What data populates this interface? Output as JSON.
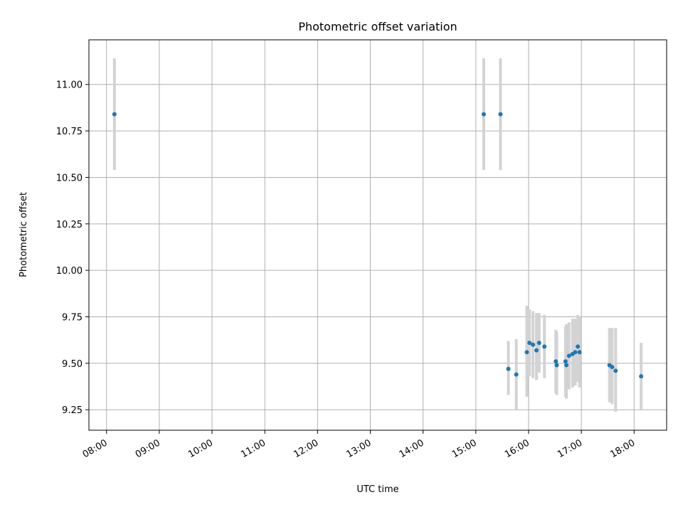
{
  "chart_data": {
    "type": "scatter",
    "title": "Photometric offset variation",
    "xlabel": "UTC time",
    "ylabel": "Photometric offset",
    "x_unit": "UTC time (HH:MM)",
    "xlim": [
      "07:40",
      "18:37"
    ],
    "ylim": [
      9.14,
      11.24
    ],
    "x_ticks": [
      "08:00",
      "09:00",
      "10:00",
      "11:00",
      "12:00",
      "13:00",
      "14:00",
      "15:00",
      "16:00",
      "17:00",
      "18:00"
    ],
    "y_ticks": [
      9.25,
      9.5,
      9.75,
      10.0,
      10.25,
      10.5,
      10.75,
      11.0
    ],
    "grid": true,
    "legend": "none",
    "colors": {
      "points": "#1f77b4",
      "errorbars": "#d3d3d3",
      "grid": "#b0b0b0"
    },
    "points": [
      {
        "x": "08:09",
        "y": 10.84,
        "yerr_low": 10.54,
        "yerr_high": 11.14
      },
      {
        "x": "15:09",
        "y": 10.84,
        "yerr_low": 10.54,
        "yerr_high": 11.14
      },
      {
        "x": "15:28",
        "y": 10.84,
        "yerr_low": 10.54,
        "yerr_high": 11.14
      },
      {
        "x": "15:37",
        "y": 9.47,
        "yerr_low": 9.33,
        "yerr_high": 9.62
      },
      {
        "x": "15:46",
        "y": 9.44,
        "yerr_low": 9.25,
        "yerr_high": 9.63
      },
      {
        "x": "15:58",
        "y": 9.56,
        "yerr_low": 9.32,
        "yerr_high": 9.81
      },
      {
        "x": "16:01",
        "y": 9.61,
        "yerr_low": 9.43,
        "yerr_high": 9.79
      },
      {
        "x": "16:05",
        "y": 9.6,
        "yerr_low": 9.42,
        "yerr_high": 9.78
      },
      {
        "x": "16:09",
        "y": 9.57,
        "yerr_low": 9.41,
        "yerr_high": 9.77
      },
      {
        "x": "16:12",
        "y": 9.61,
        "yerr_low": 9.45,
        "yerr_high": 9.77
      },
      {
        "x": "16:18",
        "y": 9.59,
        "yerr_low": 9.42,
        "yerr_high": 9.76
      },
      {
        "x": "16:31",
        "y": 9.51,
        "yerr_low": 9.34,
        "yerr_high": 9.68
      },
      {
        "x": "16:32",
        "y": 9.49,
        "yerr_low": 9.33,
        "yerr_high": 9.67
      },
      {
        "x": "16:42",
        "y": 9.51,
        "yerr_low": 9.32,
        "yerr_high": 9.7
      },
      {
        "x": "16:43",
        "y": 9.49,
        "yerr_low": 9.31,
        "yerr_high": 9.71
      },
      {
        "x": "16:46",
        "y": 9.54,
        "yerr_low": 9.36,
        "yerr_high": 9.72
      },
      {
        "x": "16:50",
        "y": 9.55,
        "yerr_low": 9.37,
        "yerr_high": 9.74
      },
      {
        "x": "16:53",
        "y": 9.56,
        "yerr_low": 9.38,
        "yerr_high": 9.74
      },
      {
        "x": "16:56",
        "y": 9.59,
        "yerr_low": 9.4,
        "yerr_high": 9.76
      },
      {
        "x": "16:58",
        "y": 9.56,
        "yerr_low": 9.37,
        "yerr_high": 9.75
      },
      {
        "x": "17:32",
        "y": 9.49,
        "yerr_low": 9.29,
        "yerr_high": 9.69
      },
      {
        "x": "17:35",
        "y": 9.48,
        "yerr_low": 9.28,
        "yerr_high": 9.69
      },
      {
        "x": "17:39",
        "y": 9.46,
        "yerr_low": 9.24,
        "yerr_high": 9.69
      },
      {
        "x": "18:08",
        "y": 9.43,
        "yerr_low": 9.25,
        "yerr_high": 9.61
      }
    ]
  }
}
